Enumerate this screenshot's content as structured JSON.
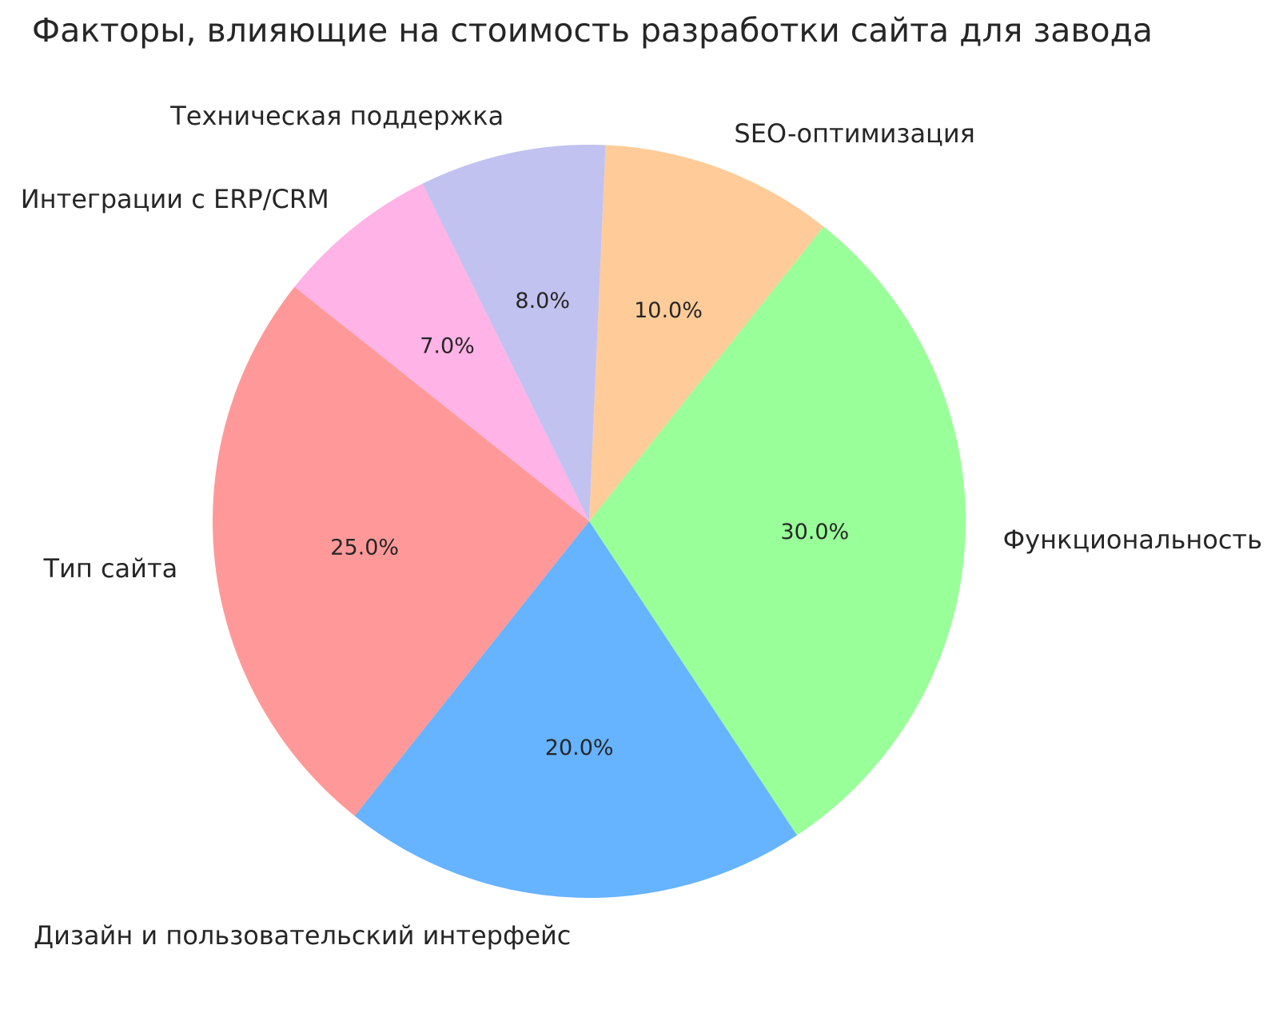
{
  "chart_data": {
    "type": "pie",
    "title": "Факторы, влияющие на стоимость разработки сайта для завода",
    "slices": [
      {
        "label": "Функциональность",
        "value": 30.0,
        "pct_label": "30.0%",
        "color": "#99ff99"
      },
      {
        "label": "SEO-оптимизация",
        "value": 10.0,
        "pct_label": "10.0%",
        "color": "#ffcc99"
      },
      {
        "label": "Техническая поддержка",
        "value": 8.0,
        "pct_label": "8.0%",
        "color": "#c2c2f0"
      },
      {
        "label": "Интеграции с ERP/CRM",
        "value": 7.0,
        "pct_label": "7.0%",
        "color": "#ffb3e6"
      },
      {
        "label": "Тип сайта",
        "value": 25.0,
        "pct_label": "25.0%",
        "color": "#ff9999"
      },
      {
        "label": "Дизайн и пользовательский интерфейс",
        "value": 20.0,
        "pct_label": "20.0%",
        "color": "#66b3ff"
      }
    ],
    "start_angle_deg": -56.5,
    "direction": "counterclockwise",
    "label_distance": 1.1,
    "pct_distance": 0.6,
    "legend": "none",
    "background_color": "#ffffff",
    "text_color": "#262626"
  }
}
